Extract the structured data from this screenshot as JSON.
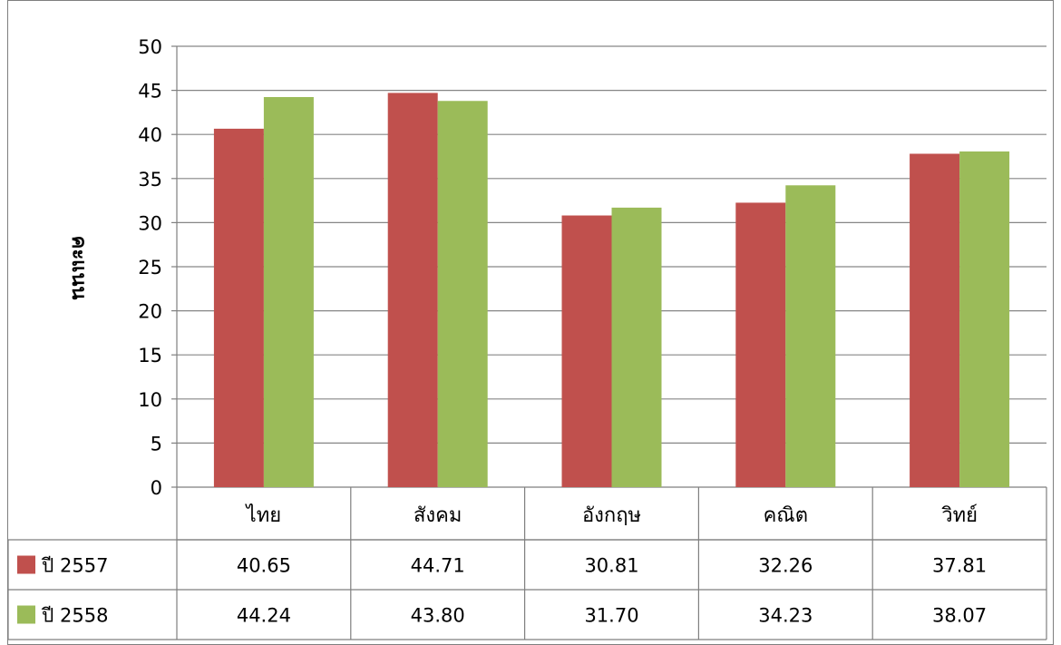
{
  "chart_data": {
    "type": "bar",
    "ylabel": "คะแนน",
    "ylim": [
      0,
      50
    ],
    "yticks": [
      0,
      5,
      10,
      15,
      20,
      25,
      30,
      35,
      40,
      45,
      50
    ],
    "categories": [
      "ไทย",
      "สังคม",
      "อังกฤษ",
      "คณิต",
      "วิทย์"
    ],
    "grid": true,
    "legend_placement": "data-table-rows",
    "series": [
      {
        "name": "ปี 2557",
        "color": "#C0504D",
        "values": [
          40.65,
          44.71,
          30.81,
          32.26,
          37.81
        ],
        "labels": [
          "40.65",
          "44.71",
          "30.81",
          "32.26",
          "37.81"
        ]
      },
      {
        "name": "ปี 2558",
        "color": "#9BBB59",
        "values": [
          44.24,
          43.8,
          31.7,
          34.23,
          38.07
        ],
        "labels": [
          "44.24",
          "43.80",
          "31.70",
          "34.23",
          "38.07"
        ]
      }
    ]
  }
}
